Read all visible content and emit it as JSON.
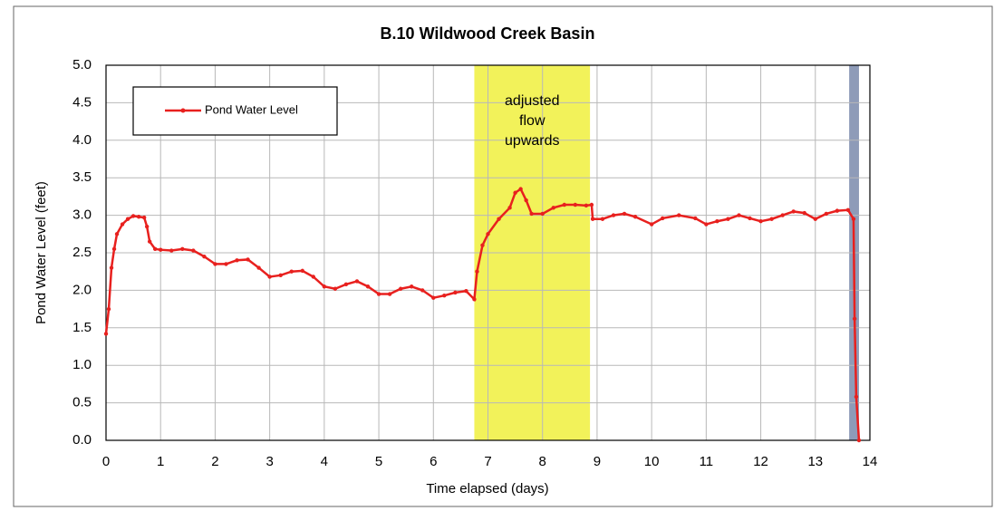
{
  "chart_data": {
    "type": "line",
    "title": "B.10 Wildwood Creek Basin",
    "xlabel": "Time elapsed (days)",
    "ylabel": "Pond Water Level (feet)",
    "xlim": [
      0,
      14
    ],
    "ylim": [
      0,
      5
    ],
    "xticks": [
      0,
      1,
      2,
      3,
      4,
      5,
      6,
      7,
      8,
      9,
      10,
      11,
      12,
      13,
      14
    ],
    "yticks": [
      {
        "value": 0,
        "label": "0.0"
      },
      {
        "value": 0.5,
        "label": "0.5"
      },
      {
        "value": 1,
        "label": "1.0"
      },
      {
        "value": 1.5,
        "label": "1.5"
      },
      {
        "value": 2,
        "label": "2.0"
      },
      {
        "value": 2.5,
        "label": "2.5"
      },
      {
        "value": 3,
        "label": "3.0"
      },
      {
        "value": 3.5,
        "label": "3.5"
      },
      {
        "value": 4,
        "label": "4.0"
      },
      {
        "value": 4.5,
        "label": "4.5"
      },
      {
        "value": 5,
        "label": "5.0"
      }
    ],
    "grid": true,
    "legend": "upper left",
    "shaded_regions": [
      {
        "x": [
          6.75,
          8.87
        ],
        "color": "#f2f25a",
        "label": [
          "adjusted",
          "flow",
          "upwards"
        ]
      },
      {
        "x": [
          13.62,
          13.8
        ],
        "color": "#8e9bb8"
      }
    ],
    "x": [
      0,
      0.05,
      0.1,
      0.15,
      0.2,
      0.3,
      0.4,
      0.5,
      0.6,
      0.7,
      0.75,
      0.8,
      0.9,
      1.0,
      1.2,
      1.4,
      1.6,
      1.8,
      2.0,
      2.2,
      2.4,
      2.6,
      2.8,
      3.0,
      3.2,
      3.4,
      3.6,
      3.8,
      4.0,
      4.2,
      4.4,
      4.6,
      4.8,
      5.0,
      5.2,
      5.4,
      5.6,
      5.8,
      6.0,
      6.2,
      6.4,
      6.6,
      6.75,
      6.8,
      6.9,
      7.0,
      7.2,
      7.4,
      7.5,
      7.6,
      7.7,
      7.8,
      8.0,
      8.2,
      8.4,
      8.6,
      8.8,
      8.9,
      8.92,
      9.1,
      9.3,
      9.5,
      9.7,
      10.0,
      10.2,
      10.5,
      10.8,
      11.0,
      11.2,
      11.4,
      11.6,
      11.8,
      12.0,
      12.2,
      12.4,
      12.6,
      12.8,
      13.0,
      13.2,
      13.4,
      13.6,
      13.7,
      13.72,
      13.75,
      13.8
    ],
    "series": [
      {
        "name": "Pond Water Level",
        "color": "#e8201e",
        "values": [
          1.42,
          1.75,
          2.3,
          2.55,
          2.75,
          2.88,
          2.95,
          2.99,
          2.98,
          2.97,
          2.85,
          2.65,
          2.55,
          2.54,
          2.53,
          2.55,
          2.53,
          2.45,
          2.35,
          2.35,
          2.4,
          2.41,
          2.3,
          2.18,
          2.2,
          2.25,
          2.26,
          2.18,
          2.05,
          2.02,
          2.08,
          2.12,
          2.05,
          1.95,
          1.95,
          2.02,
          2.05,
          2.0,
          1.9,
          1.93,
          1.97,
          1.99,
          1.88,
          2.25,
          2.6,
          2.75,
          2.95,
          3.1,
          3.3,
          3.35,
          3.2,
          3.02,
          3.02,
          3.1,
          3.14,
          3.14,
          3.13,
          3.14,
          2.95,
          2.95,
          3.0,
          3.02,
          2.98,
          2.88,
          2.96,
          3.0,
          2.96,
          2.88,
          2.92,
          2.95,
          3.0,
          2.96,
          2.92,
          2.95,
          3.0,
          3.05,
          3.03,
          2.95,
          3.02,
          3.06,
          3.07,
          2.95,
          1.62,
          0.58,
          0.0
        ]
      }
    ]
  }
}
